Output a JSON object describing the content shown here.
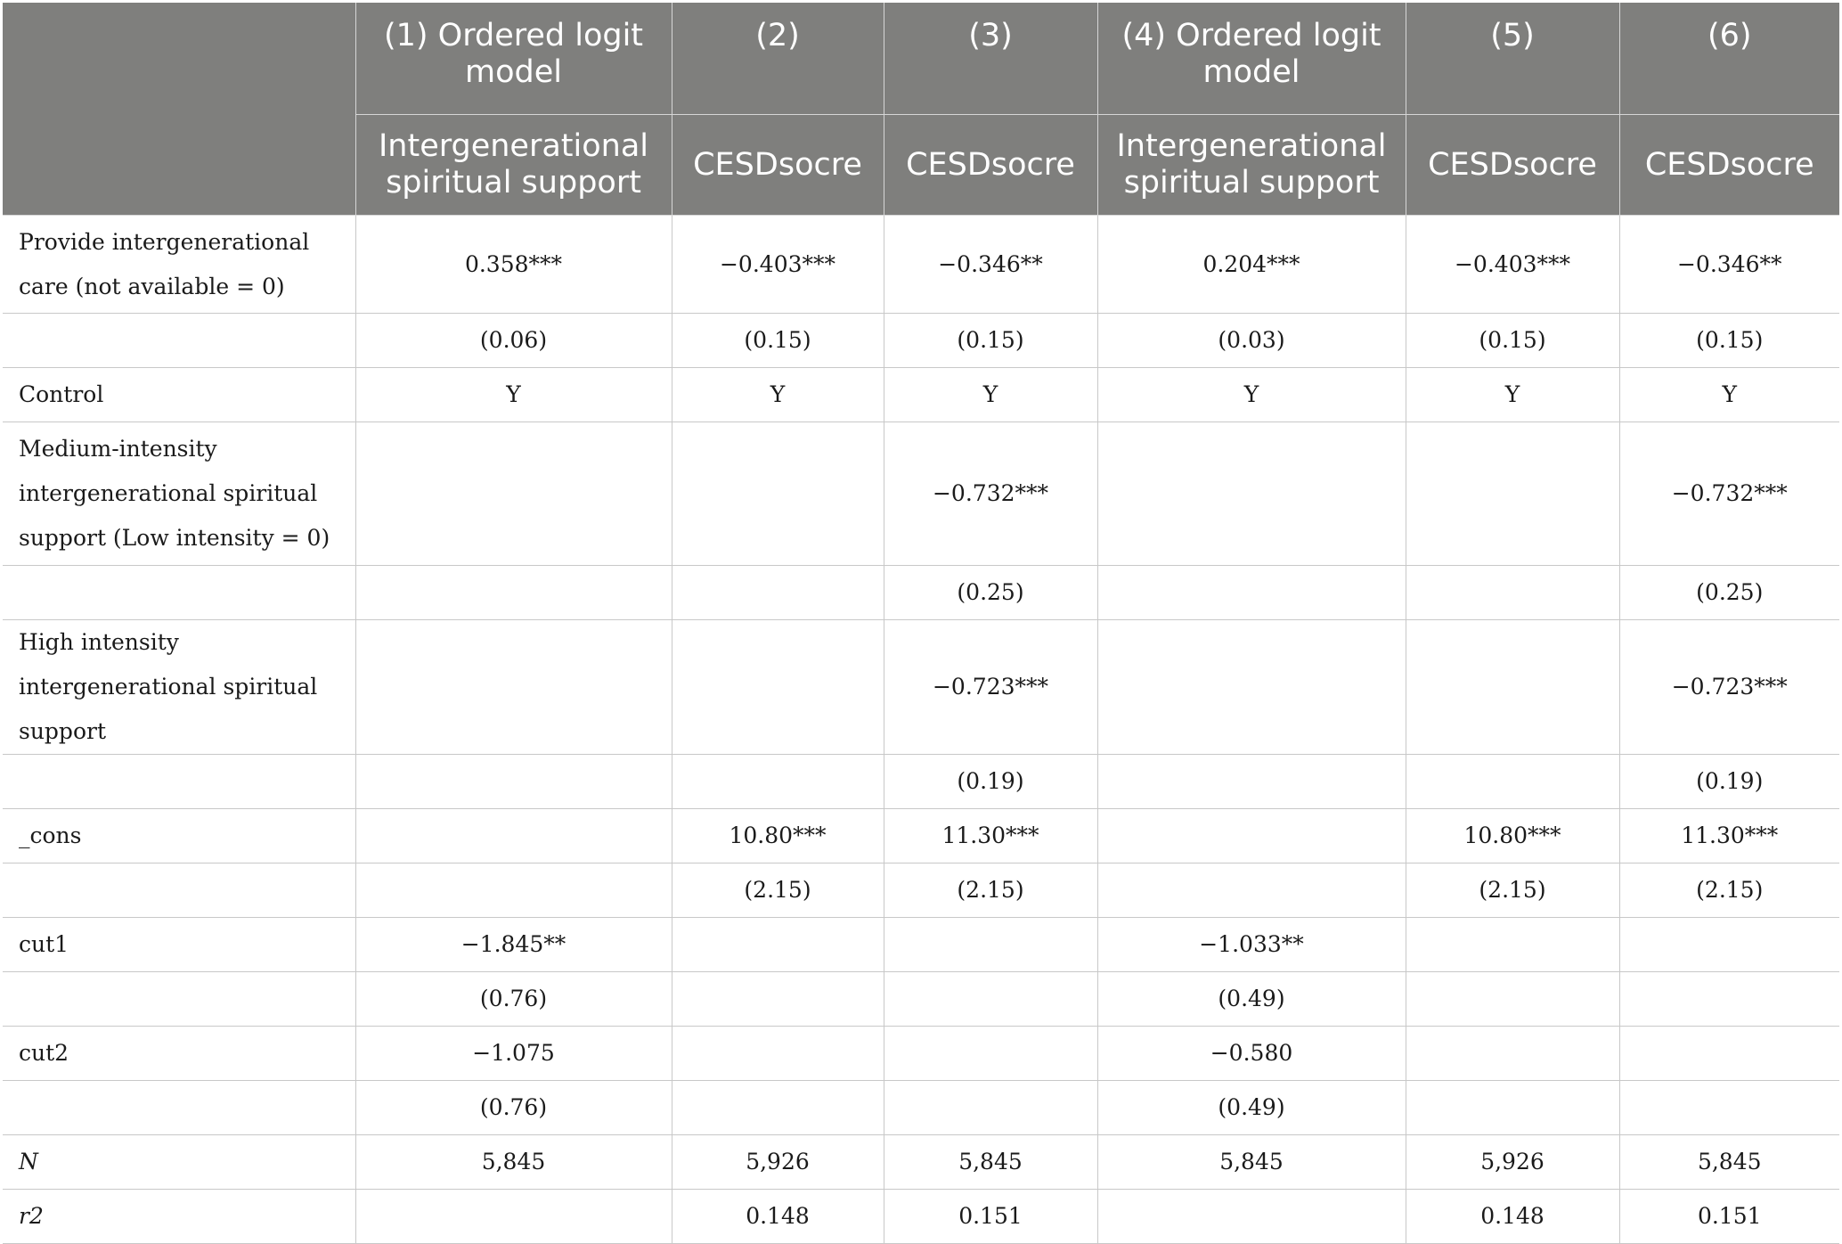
{
  "header": {
    "model_labels": [
      "(1) Ordered logit model",
      "(2)",
      "(3)",
      "(4) Ordered logit model",
      "(5)",
      "(6)"
    ],
    "dependent_vars": [
      "Intergenerational spiritual support",
      "CESDsocre",
      "CESDsocre",
      "Intergenerational spiritual support",
      "CESDsocre",
      "CESDsocre"
    ]
  },
  "rows": [
    {
      "label": "Provide intergenerational care (not available = 0)",
      "cells": [
        "0.358***",
        "−0.403***",
        "−0.346**",
        "0.204***",
        "−0.403***",
        "−0.346**"
      ]
    },
    {
      "label": "",
      "cells": [
        "(0.06)",
        "(0.15)",
        "(0.15)",
        "(0.03)",
        "(0.15)",
        "(0.15)"
      ]
    },
    {
      "label": "Control",
      "cells": [
        "Y",
        "Y",
        "Y",
        "Y",
        "Y",
        "Y"
      ]
    },
    {
      "label": "Medium-intensity intergenerational spiritual support (Low intensity = 0)",
      "cells": [
        "",
        "",
        "−0.732***",
        "",
        "",
        "−0.732***"
      ]
    },
    {
      "label": "",
      "cells": [
        "",
        "",
        "(0.25)",
        "",
        "",
        "(0.25)"
      ]
    },
    {
      "label": "High intensity intergenerational spiritual support",
      "cells": [
        "",
        "",
        "−0.723***",
        "",
        "",
        "−0.723***"
      ]
    },
    {
      "label": "",
      "cells": [
        "",
        "",
        "(0.19)",
        "",
        "",
        "(0.19)"
      ]
    },
    {
      "label": "_cons",
      "cells": [
        "",
        "10.80***",
        "11.30***",
        "",
        "10.80***",
        "11.30***"
      ]
    },
    {
      "label": "",
      "cells": [
        "",
        "(2.15)",
        "(2.15)",
        "",
        "(2.15)",
        "(2.15)"
      ]
    },
    {
      "label": "cut1",
      "cells": [
        "−1.845**",
        "",
        "",
        "−1.033**",
        "",
        ""
      ]
    },
    {
      "label": "",
      "cells": [
        "(0.76)",
        "",
        "",
        "(0.49)",
        "",
        ""
      ]
    },
    {
      "label": "cut2",
      "cells": [
        "−1.075",
        "",
        "",
        "−0.580",
        "",
        ""
      ]
    },
    {
      "label": "",
      "cells": [
        "(0.76)",
        "",
        "",
        "(0.49)",
        "",
        ""
      ]
    },
    {
      "label": "N",
      "cells": [
        "5,845",
        "5,926",
        "5,845",
        "5,845",
        "5,926",
        "5,845"
      ]
    },
    {
      "label": "r2",
      "cells": [
        "",
        "0.148",
        "0.151",
        "",
        "0.148",
        "0.151"
      ]
    }
  ]
}
